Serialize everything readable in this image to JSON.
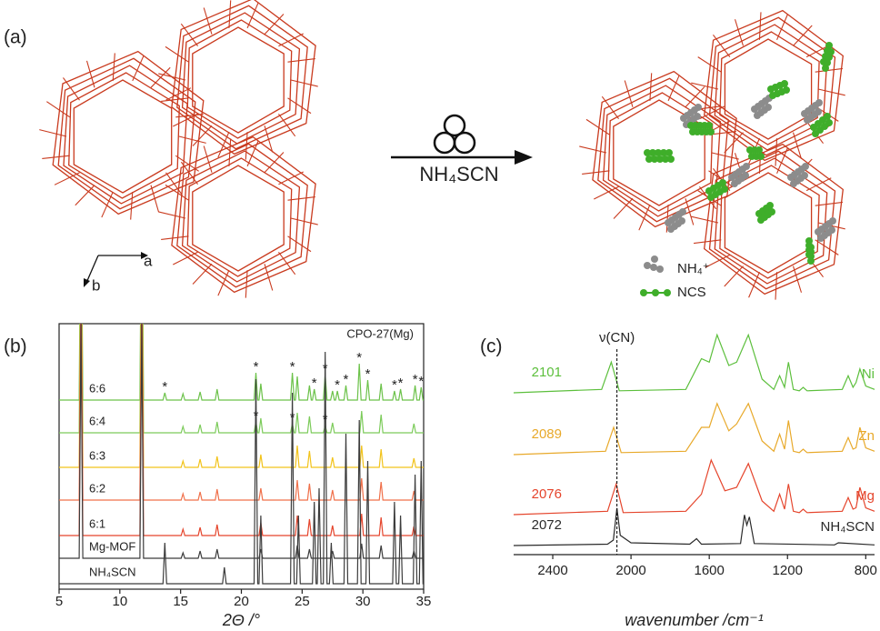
{
  "panels": {
    "a": "(a)",
    "b": "(b)",
    "c": "(c)"
  },
  "scheme": {
    "reagent": "NH₄SCN",
    "axes": {
      "a": "a",
      "b": "b"
    },
    "legend": [
      {
        "label": "NH₄⁺",
        "color": "#8c8c8c"
      },
      {
        "label": "NCS",
        "color": "#3fae2a"
      }
    ]
  },
  "chart_data": [
    {
      "type": "line",
      "xlabel": "2Θ /°",
      "xlim": [
        5,
        35
      ],
      "xticks": [
        5,
        10,
        15,
        20,
        25,
        30,
        35
      ],
      "annotation": "CPO-27(Mg)",
      "star": "*",
      "series": [
        {
          "name": "6:6",
          "color": "#6cc24a",
          "x": [
            5,
            6.65,
            6.8,
            6.95,
            11.65,
            11.8,
            11.95,
            13.55,
            13.7,
            13.85,
            15.05,
            15.2,
            15.35,
            16.45,
            16.6,
            16.75,
            17.85,
            18.0,
            18.15,
            21.05,
            21.2,
            21.35,
            21.45,
            21.6,
            21.75,
            24.05,
            24.2,
            24.35,
            24.45,
            24.6,
            24.75,
            25.45,
            25.6,
            25.75,
            25.85,
            26.0,
            26.15,
            26.75,
            26.9,
            27.05,
            27.35,
            27.5,
            27.65,
            27.75,
            27.9,
            28.05,
            28.45,
            28.6,
            28.75,
            29.55,
            29.7,
            29.85,
            30.25,
            30.4,
            30.55,
            31.35,
            31.5,
            31.65,
            32.45,
            32.6,
            32.75,
            32.95,
            33.1,
            33.25,
            34.15,
            34.3,
            34.45,
            34.65,
            34.8,
            34.95,
            35
          ],
          "values": [
            0,
            0,
            260,
            0,
            0,
            260,
            0,
            0,
            8,
            0,
            0,
            7,
            0,
            0,
            9,
            0,
            0,
            12,
            0,
            0,
            30,
            0,
            0,
            18,
            0,
            0,
            30,
            0,
            0,
            26,
            0,
            0,
            16,
            0,
            0,
            12,
            0,
            0,
            28,
            0,
            0,
            10,
            0,
            0,
            10,
            0,
            0,
            16,
            0,
            0,
            40,
            0,
            0,
            22,
            0,
            0,
            18,
            0,
            0,
            10,
            0,
            0,
            12,
            0,
            0,
            16,
            0,
            0,
            14,
            0,
            0
          ],
          "starred": [
            13.7,
            21.2,
            24.2,
            26.0,
            26.9,
            27.9,
            28.6,
            29.7,
            30.4,
            32.6,
            33.1,
            34.3,
            34.8
          ]
        },
        {
          "name": "6:4",
          "color": "#7ccb5a",
          "x": [
            5,
            6.65,
            6.8,
            6.95,
            11.65,
            11.8,
            11.95,
            15.05,
            15.2,
            15.35,
            16.45,
            16.6,
            16.75,
            17.85,
            18.0,
            18.15,
            21.05,
            21.2,
            21.35,
            21.45,
            21.6,
            21.75,
            24.05,
            24.2,
            24.35,
            24.45,
            24.6,
            24.75,
            25.45,
            25.6,
            25.75,
            26.75,
            26.9,
            27.05,
            27.35,
            27.5,
            27.65,
            29.75,
            29.9,
            30.05,
            31.35,
            31.5,
            31.65,
            34.05,
            34.2,
            34.35,
            35
          ],
          "values": [
            0,
            0,
            260,
            0,
            0,
            260,
            0,
            0,
            7,
            0,
            0,
            9,
            0,
            0,
            12,
            0,
            0,
            12,
            0,
            0,
            16,
            0,
            0,
            10,
            0,
            0,
            22,
            0,
            0,
            18,
            0,
            0,
            8,
            0,
            0,
            11,
            0,
            0,
            24,
            0,
            0,
            20,
            0,
            0,
            10,
            0,
            0
          ],
          "starred": [
            21.2,
            24.2,
            26.9
          ]
        },
        {
          "name": "6:3",
          "color": "#f2c31a",
          "x": [
            5,
            6.65,
            6.8,
            6.95,
            11.65,
            11.8,
            11.95,
            15.05,
            15.2,
            15.35,
            16.45,
            16.6,
            16.75,
            17.85,
            18.0,
            18.15,
            21.45,
            21.6,
            21.75,
            24.45,
            24.6,
            24.75,
            25.45,
            25.6,
            25.75,
            27.35,
            27.5,
            27.65,
            29.75,
            29.9,
            30.05,
            31.35,
            31.5,
            31.65,
            34.05,
            34.2,
            34.35,
            35
          ],
          "values": [
            0,
            0,
            260,
            0,
            0,
            260,
            0,
            0,
            7,
            0,
            0,
            9,
            0,
            0,
            12,
            0,
            0,
            14,
            0,
            0,
            24,
            0,
            0,
            18,
            0,
            0,
            11,
            0,
            0,
            24,
            0,
            0,
            20,
            0,
            0,
            10,
            0,
            0
          ]
        },
        {
          "name": "6:2",
          "color": "#f0704a",
          "x": [
            5,
            6.65,
            6.8,
            6.95,
            11.65,
            11.8,
            11.95,
            15.05,
            15.2,
            15.35,
            16.45,
            16.6,
            16.75,
            17.85,
            18.0,
            18.15,
            21.45,
            21.6,
            21.75,
            24.45,
            24.6,
            24.75,
            25.45,
            25.6,
            25.75,
            27.35,
            27.5,
            27.65,
            29.75,
            29.9,
            30.05,
            31.35,
            31.5,
            31.65,
            34.05,
            34.2,
            34.35,
            35
          ],
          "values": [
            0,
            0,
            260,
            0,
            0,
            260,
            0,
            0,
            7,
            0,
            0,
            9,
            0,
            0,
            12,
            0,
            0,
            13,
            0,
            0,
            22,
            0,
            0,
            18,
            0,
            0,
            11,
            0,
            0,
            24,
            0,
            0,
            20,
            0,
            0,
            10,
            0,
            0
          ]
        },
        {
          "name": "6:1",
          "color": "#e5452c",
          "x": [
            5,
            6.65,
            6.8,
            6.95,
            11.65,
            11.8,
            11.95,
            15.05,
            15.2,
            15.35,
            16.45,
            16.6,
            16.75,
            17.85,
            18.0,
            18.15,
            21.45,
            21.6,
            21.75,
            24.45,
            24.6,
            24.75,
            25.45,
            25.6,
            25.75,
            27.35,
            27.5,
            27.65,
            29.75,
            29.9,
            30.05,
            31.35,
            31.5,
            31.65,
            34.05,
            34.2,
            34.35,
            35
          ],
          "values": [
            0,
            0,
            260,
            0,
            0,
            260,
            0,
            0,
            7,
            0,
            0,
            9,
            0,
            0,
            12,
            0,
            0,
            14,
            0,
            0,
            22,
            0,
            0,
            18,
            0,
            0,
            11,
            0,
            0,
            24,
            0,
            0,
            20,
            0,
            0,
            10,
            0,
            0
          ]
        },
        {
          "name": "Mg-MOF",
          "color": "#3c3c3c",
          "x": [
            5,
            6.65,
            6.8,
            6.95,
            11.65,
            11.8,
            11.95,
            15.05,
            15.2,
            15.35,
            16.45,
            16.6,
            16.75,
            17.85,
            18.0,
            18.15,
            21.45,
            21.6,
            21.75,
            24.45,
            24.6,
            24.75,
            25.45,
            25.6,
            25.75,
            27.35,
            27.5,
            27.65,
            29.75,
            29.9,
            30.05,
            31.35,
            31.5,
            31.65,
            34.05,
            34.2,
            34.35,
            35
          ],
          "values": [
            0,
            0,
            260,
            0,
            0,
            260,
            0,
            0,
            6,
            0,
            0,
            8,
            0,
            0,
            10,
            0,
            0,
            10,
            0,
            0,
            14,
            0,
            0,
            10,
            0,
            0,
            8,
            0,
            0,
            16,
            0,
            0,
            14,
            0,
            0,
            8,
            0,
            0
          ]
        },
        {
          "name": "NH₄SCN",
          "color": "#3c3c3c",
          "x": [
            5,
            13.55,
            13.7,
            13.85,
            18.45,
            18.6,
            18.75,
            21.05,
            21.2,
            21.35,
            21.45,
            21.6,
            21.75,
            24.05,
            24.2,
            24.35,
            24.55,
            24.7,
            24.85,
            25.85,
            26.0,
            26.15,
            26.25,
            26.4,
            26.55,
            26.75,
            26.9,
            27.05,
            27.25,
            27.4,
            27.55,
            28.45,
            28.6,
            28.75,
            29.55,
            29.7,
            29.85,
            30.25,
            30.4,
            30.55,
            32.45,
            32.6,
            32.75,
            32.95,
            33.1,
            33.25,
            34.15,
            34.3,
            34.45,
            34.65,
            34.8,
            34.95,
            35
          ],
          "values": [
            0,
            0,
            45,
            0,
            0,
            18,
            0,
            0,
            225,
            0,
            0,
            75,
            0,
            0,
            210,
            0,
            0,
            75,
            0,
            0,
            90,
            0,
            0,
            105,
            0,
            0,
            255,
            0,
            0,
            45,
            0,
            0,
            165,
            0,
            0,
            180,
            0,
            0,
            135,
            0,
            0,
            90,
            0,
            0,
            75,
            0,
            0,
            120,
            0,
            0,
            135,
            0,
            0
          ]
        }
      ]
    },
    {
      "type": "line",
      "xlabel": "wavenumber /cm⁻¹",
      "xlim": [
        2600,
        755
      ],
      "xticks": [
        2400,
        2000,
        1600,
        1200,
        800
      ],
      "annotation": "ν(CN)",
      "series": [
        {
          "name": "Ni",
          "color": "#5cbf3c",
          "peak": 2101,
          "x": [
            2600,
            2150,
            2101,
            2060,
            1720,
            1640,
            1600,
            1560,
            1500,
            1460,
            1400,
            1330,
            1270,
            1240,
            1215,
            1195,
            1170,
            1140,
            1120,
            1100,
            920,
            890,
            865,
            850,
            830,
            800,
            755
          ],
          "values": [
            0,
            5,
            45,
            3,
            5,
            50,
            45,
            85,
            40,
            45,
            85,
            20,
            5,
            25,
            8,
            45,
            5,
            3,
            8,
            3,
            5,
            25,
            8,
            15,
            35,
            10,
            5
          ]
        },
        {
          "name": "Zn",
          "color": "#e8a92a",
          "peak": 2089,
          "x": [
            2600,
            2130,
            2089,
            2050,
            1720,
            1640,
            1600,
            1560,
            1500,
            1460,
            1400,
            1330,
            1270,
            1240,
            1215,
            1195,
            1170,
            1140,
            1120,
            1100,
            920,
            890,
            865,
            850,
            830,
            800,
            755
          ],
          "values": [
            0,
            5,
            40,
            3,
            5,
            40,
            40,
            75,
            35,
            45,
            75,
            20,
            5,
            30,
            8,
            50,
            5,
            3,
            8,
            3,
            5,
            25,
            8,
            10,
            40,
            10,
            5
          ]
        },
        {
          "name": "Mg",
          "color": "#e5452c",
          "peak": 2076,
          "x": [
            2600,
            2120,
            2076,
            2040,
            1720,
            1640,
            1590,
            1520,
            1460,
            1400,
            1330,
            1270,
            1240,
            1215,
            1195,
            1170,
            1140,
            1120,
            1100,
            920,
            890,
            865,
            850,
            830,
            800,
            755
          ],
          "values": [
            0,
            5,
            45,
            3,
            5,
            30,
            80,
            35,
            40,
            75,
            20,
            5,
            30,
            8,
            45,
            5,
            3,
            8,
            3,
            5,
            25,
            8,
            10,
            40,
            10,
            5
          ]
        },
        {
          "name": "NH₄SCN",
          "color": "#2a2a2a",
          "peak": 2072,
          "x": [
            2600,
            2120,
            2090,
            2072,
            2055,
            2000,
            1700,
            1665,
            1640,
            1440,
            1420,
            1408,
            1395,
            1370,
            960,
            940,
            755
          ],
          "values": [
            0,
            2,
            8,
            55,
            15,
            4,
            2,
            10,
            2,
            3,
            45,
            30,
            42,
            3,
            1,
            4,
            1
          ]
        }
      ]
    }
  ]
}
